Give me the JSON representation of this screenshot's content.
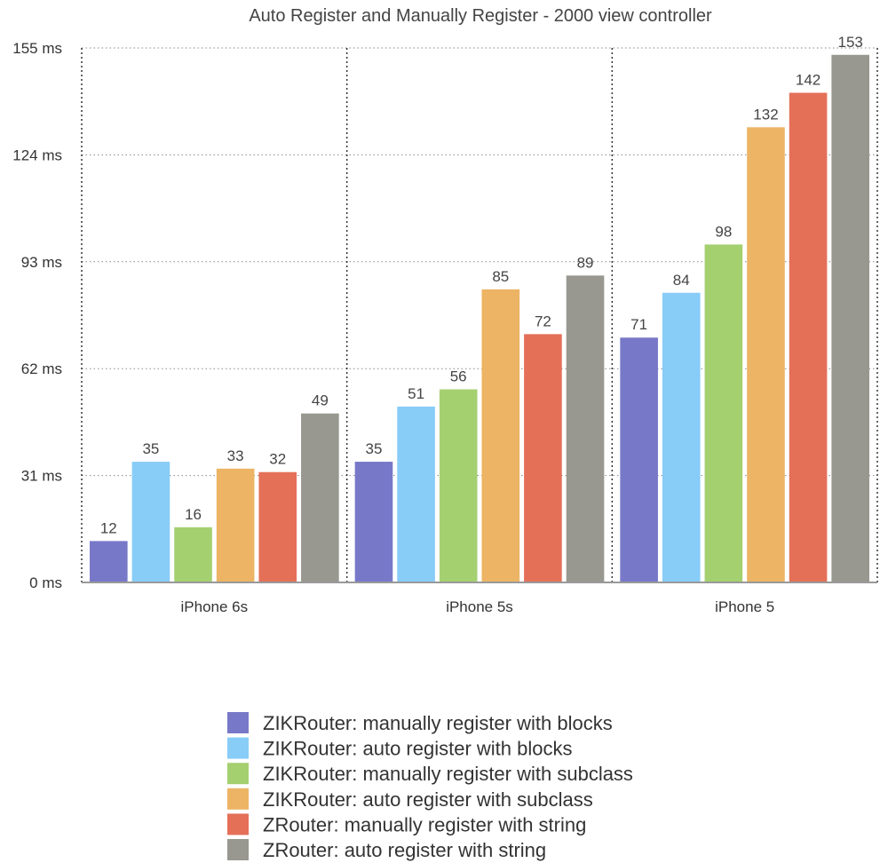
{
  "chart_data": {
    "type": "bar",
    "title": "Auto Register and Manually Register - 2000  view controller",
    "xlabel": "",
    "ylabel": "",
    "ylim": [
      0,
      155
    ],
    "yticks": [
      0,
      31,
      62,
      93,
      124,
      155
    ],
    "ytick_labels": [
      "0 ms",
      "31 ms",
      "62 ms",
      "93 ms",
      "124 ms",
      "155 ms"
    ],
    "categories": [
      "iPhone 6s",
      "iPhone 5s",
      "iPhone 5"
    ],
    "series": [
      {
        "name": "ZIKRouter: manually register with blocks",
        "color": "#7878c8",
        "values": [
          12,
          35,
          71
        ]
      },
      {
        "name": "ZIKRouter: auto register with blocks",
        "color": "#88ccf8",
        "values": [
          35,
          51,
          84
        ]
      },
      {
        "name": "ZIKRouter: manually register with subclass",
        "color": "#a4d070",
        "values": [
          16,
          56,
          98
        ]
      },
      {
        "name": "ZIKRouter: auto register with subclass",
        "color": "#ecb464",
        "values": [
          33,
          85,
          132
        ]
      },
      {
        "name": "ZRouter: manually register with string",
        "color": "#e47058",
        "values": [
          32,
          72,
          142
        ]
      },
      {
        "name": "ZRouter: auto register with string",
        "color": "#989890",
        "values": [
          49,
          89,
          153
        ]
      }
    ],
    "grid": true,
    "legend_position": "bottom-center"
  }
}
